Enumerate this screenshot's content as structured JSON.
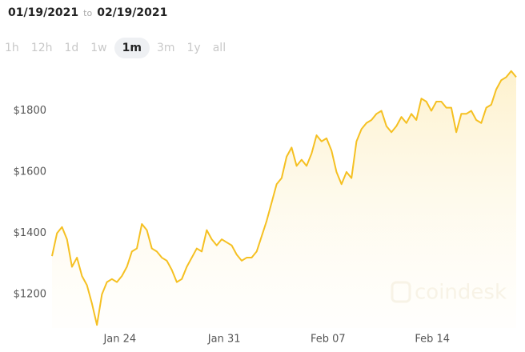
{
  "header": {
    "date_from": "01/19/2021",
    "to": "to",
    "date_to": "02/19/2021"
  },
  "range_buttons": {
    "labels": [
      "1h",
      "12h",
      "1d",
      "1w",
      "1m",
      "3m",
      "1y",
      "all"
    ],
    "selected": 4
  },
  "chart_data": {
    "type": "line",
    "color": "#f5c022",
    "area": true,
    "grid": false,
    "watermark": "coindesk",
    "values": [
      1325,
      1400,
      1420,
      1380,
      1290,
      1320,
      1260,
      1230,
      1170,
      1100,
      1200,
      1240,
      1250,
      1240,
      1260,
      1290,
      1340,
      1350,
      1430,
      1410,
      1350,
      1340,
      1320,
      1310,
      1280,
      1240,
      1250,
      1290,
      1320,
      1350,
      1340,
      1410,
      1380,
      1360,
      1380,
      1370,
      1360,
      1330,
      1310,
      1320,
      1320,
      1340,
      1390,
      1440,
      1500,
      1560,
      1580,
      1650,
      1680,
      1620,
      1640,
      1620,
      1660,
      1720,
      1700,
      1710,
      1670,
      1600,
      1560,
      1600,
      1580,
      1700,
      1740,
      1760,
      1770,
      1790,
      1800,
      1750,
      1730,
      1750,
      1780,
      1760,
      1790,
      1770,
      1840,
      1830,
      1800,
      1830,
      1830,
      1810,
      1810,
      1730,
      1790,
      1790,
      1800,
      1770,
      1760,
      1810,
      1820,
      1870,
      1900,
      1910,
      1930,
      1910
    ],
    "xlim": [
      0,
      93
    ],
    "xticks": [
      {
        "value": 13.6,
        "label": "Jan 24"
      },
      {
        "value": 34.5,
        "label": "Jan 31"
      },
      {
        "value": 55.3,
        "label": "Feb 07"
      },
      {
        "value": 76.2,
        "label": "Feb 14"
      }
    ],
    "ylim": [
      1090,
      1960
    ],
    "yticks": [
      {
        "value": 1200,
        "label": "$1200"
      },
      {
        "value": 1400,
        "label": "$1400"
      },
      {
        "value": 1600,
        "label": "$1600"
      },
      {
        "value": 1800,
        "label": "$1800"
      }
    ]
  }
}
